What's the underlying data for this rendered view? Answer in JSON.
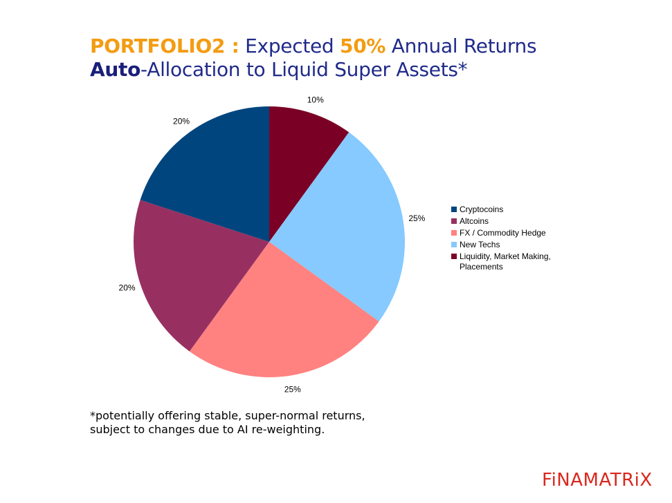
{
  "title": {
    "line1_part1": "PORTFOLIO2 :",
    "line1_part2": "Expected",
    "line1_part3": "50%",
    "line1_part4": "Annual Returns",
    "line2_part1": "Auto",
    "line2_part2": "-Allocation to Liquid Super Assets*"
  },
  "footnote": {
    "line1": "*potentially offering stable, super-normal returns,",
    "line2": "subject to changes due to AI re-weighting."
  },
  "brand": "FiNAMATRiX",
  "chart_data": {
    "type": "pie",
    "start": "12 o'clock",
    "direction": "clockwise",
    "slices": [
      {
        "label": "Liquidity, Market Making, Placements",
        "value": 10,
        "data_label": "10%",
        "color": "#7b0025"
      },
      {
        "label": "New Techs",
        "value": 25,
        "data_label": "25%",
        "color": "#86caff"
      },
      {
        "label": "FX / Commodity Hedge",
        "value": 25,
        "data_label": "25%",
        "color": "#ff8280"
      },
      {
        "label": "Altcoins",
        "value": 20,
        "data_label": "20%",
        "color": "#973061"
      },
      {
        "label": "Cryptocoins",
        "value": 20,
        "data_label": "20%",
        "color": "#00457e"
      }
    ],
    "legend_position": "right",
    "legend": [
      {
        "label": "Cryptocoins",
        "color": "#00457e"
      },
      {
        "label": "Altcoins",
        "color": "#973061"
      },
      {
        "label": "FX / Commodity Hedge",
        "color": "#ff8280"
      },
      {
        "label": "New Techs",
        "color": "#86caff"
      },
      {
        "label": "Liquidity, Market Making, Placements",
        "color": "#7b0025"
      }
    ]
  }
}
